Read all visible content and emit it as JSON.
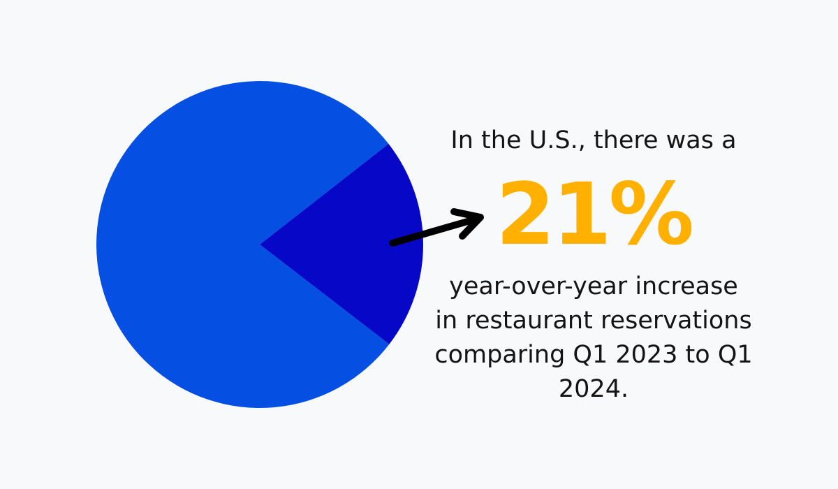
{
  "chart_data": {
    "type": "pie",
    "slices": [
      {
        "value": 79,
        "color": "#0550e3"
      },
      {
        "value": 21,
        "color": "#0707c7"
      }
    ]
  },
  "text": {
    "intro": "In the U.S., there was a",
    "highlight": "21%",
    "caption_lines": [
      "year-over-year increase",
      "in restaurant reservations",
      "comparing Q1 2023 to Q1",
      "2024."
    ]
  },
  "colors": {
    "background": "#f8f9fb",
    "highlight": "#ffb000",
    "arrow": "#000000"
  },
  "icons": {
    "arrow": "arrow-right-icon"
  }
}
